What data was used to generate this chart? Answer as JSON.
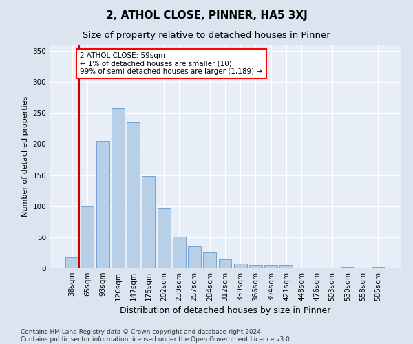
{
  "title": "2, ATHOL CLOSE, PINNER, HA5 3XJ",
  "subtitle": "Size of property relative to detached houses in Pinner",
  "xlabel": "Distribution of detached houses by size in Pinner",
  "ylabel": "Number of detached properties",
  "categories": [
    "38sqm",
    "65sqm",
    "93sqm",
    "120sqm",
    "147sqm",
    "175sqm",
    "202sqm",
    "230sqm",
    "257sqm",
    "284sqm",
    "312sqm",
    "339sqm",
    "366sqm",
    "394sqm",
    "421sqm",
    "448sqm",
    "476sqm",
    "503sqm",
    "530sqm",
    "558sqm",
    "585sqm"
  ],
  "values": [
    18,
    100,
    205,
    258,
    235,
    148,
    96,
    51,
    35,
    25,
    14,
    8,
    6,
    5,
    5,
    1,
    1,
    0,
    2,
    1,
    2
  ],
  "bar_color": "#b8cfe8",
  "bar_edge_color": "#6699cc",
  "annotation_text_line1": "2 ATHOL CLOSE: 59sqm",
  "annotation_text_line2": "← 1% of detached houses are smaller (10)",
  "annotation_text_line3": "99% of semi-detached houses are larger (1,189) →",
  "marker_color": "#cc0000",
  "fig_background_color": "#dce4f0",
  "plot_background": "#e8eef8",
  "ylim": [
    0,
    360
  ],
  "yticks": [
    0,
    50,
    100,
    150,
    200,
    250,
    300,
    350
  ],
  "footer_line1": "Contains HM Land Registry data © Crown copyright and database right 2024.",
  "footer_line2": "Contains public sector information licensed under the Open Government Licence v3.0.",
  "title_fontsize": 11,
  "subtitle_fontsize": 9.5,
  "xlabel_fontsize": 9,
  "ylabel_fontsize": 8,
  "tick_fontsize": 7.5,
  "annotation_fontsize": 7.5,
  "footer_fontsize": 6.5
}
